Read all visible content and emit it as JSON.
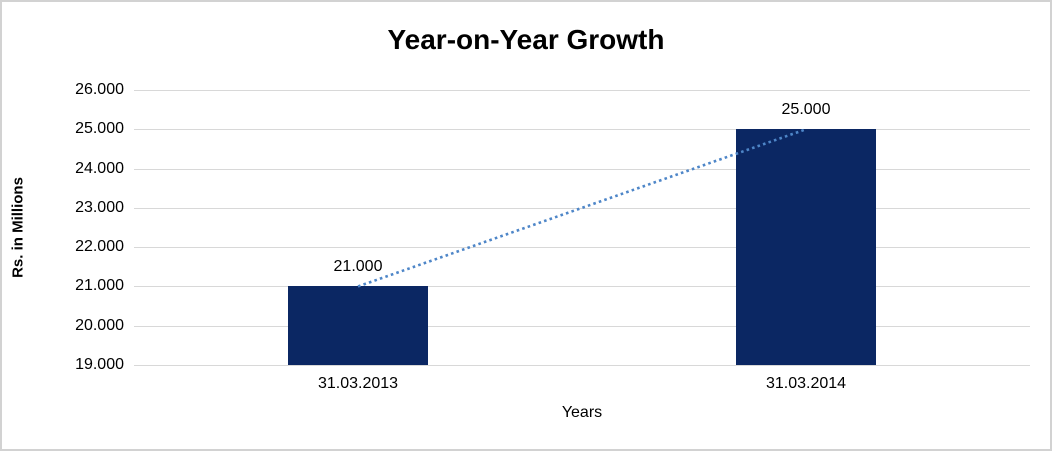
{
  "chart_data": {
    "type": "bar",
    "title": "Year-on-Year Growth",
    "xlabel": "Years",
    "ylabel": "Rs. in Millions",
    "categories": [
      "31.03.2013",
      "31.03.2014"
    ],
    "series": [
      {
        "name": "amount-bars",
        "type": "bar",
        "values": [
          21000,
          25000
        ],
        "color": "#0b2763"
      },
      {
        "name": "growth-trend",
        "type": "line",
        "values": [
          21000,
          25000
        ],
        "color": "#4e86c8",
        "style": "dotted"
      }
    ],
    "values": [
      21000,
      25000
    ],
    "value_labels": [
      "21.000",
      "25.000"
    ],
    "ylim": [
      19000,
      26000
    ],
    "ytick_step": 1000,
    "ytick_labels": [
      "19.000",
      "20.000",
      "21.000",
      "22.000",
      "23.000",
      "24.000",
      "25.000",
      "26.000"
    ],
    "grid": "horizontal",
    "legend_position": "none",
    "colors": {
      "bar": "#0b2763",
      "trend_line": "#4e86c8",
      "gridline": "#d8d8d8",
      "frame_border": "#d2d2d2",
      "text": "#000000",
      "background": "#ffffff"
    }
  }
}
